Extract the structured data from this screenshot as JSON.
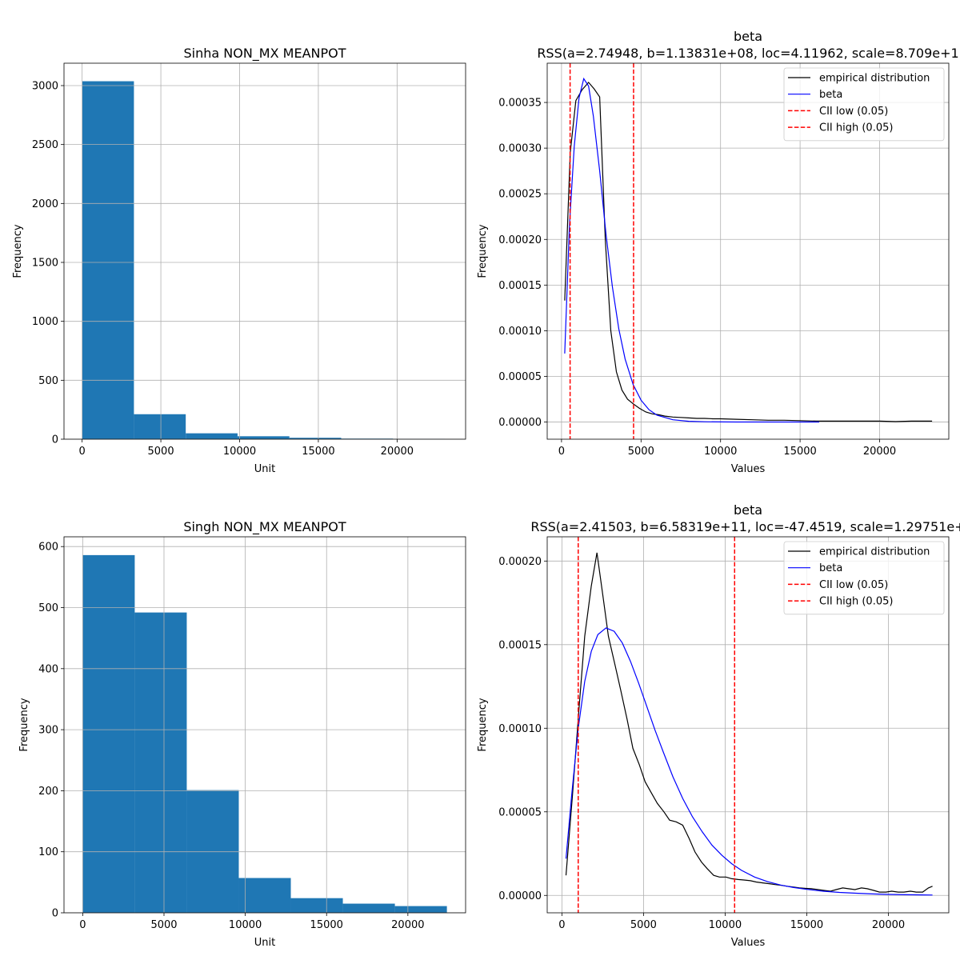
{
  "figure": {
    "background": "#ffffff"
  },
  "chart_data": [
    {
      "type": "bar",
      "title": "Sinha NON_MX MEANPOT",
      "xlabel": "Unit",
      "ylabel": "Frequency",
      "xlim": [
        -1150,
        24350
      ],
      "ylim": [
        0,
        3190
      ],
      "xticks": [
        0,
        5000,
        10000,
        15000,
        20000
      ],
      "xtick_labels": [
        "0",
        "5000",
        "10000",
        "15000",
        "20000"
      ],
      "yticks": [
        0,
        500,
        1000,
        1500,
        2000,
        2500,
        3000
      ],
      "ytick_labels": [
        "0",
        "500",
        "1000",
        "1500",
        "2000",
        "2500",
        "3000"
      ],
      "bin_edges": [
        0,
        3290,
        6580,
        9870,
        13160,
        16450,
        19740,
        23030
      ],
      "values": [
        3037,
        212,
        50,
        25,
        12,
        5,
        3
      ],
      "color": "#1f77b4",
      "grid": true
    },
    {
      "type": "line",
      "title": "beta\nRSS(a=2.74948, b=1.13831e+08, loc=4.11962, scale=8.709e+1",
      "xlabel": "Values",
      "ylabel": "Frequency",
      "xlim": [
        -900,
        24350
      ],
      "ylim": [
        -1.88e-05,
        0.000393
      ],
      "xticks": [
        0,
        5000,
        10000,
        15000,
        20000
      ],
      "xtick_labels": [
        "0",
        "5000",
        "10000",
        "15000",
        "20000"
      ],
      "yticks": [
        0,
        5e-05,
        0.0001,
        0.00015,
        0.0002,
        0.00025,
        0.0003,
        0.00035
      ],
      "ytick_labels": [
        "0.00000",
        "0.00005",
        "0.00010",
        "0.00015",
        "0.00020",
        "0.00025",
        "0.00030",
        "0.00035"
      ],
      "grid": true,
      "legend_position": "top-right",
      "series": [
        {
          "name": "empirical distribution",
          "color": "#000000",
          "style": "solid",
          "x": [
            200,
            550,
            900,
            1300,
            1700,
            2050,
            2400,
            2750,
            3100,
            3450,
            3800,
            4150,
            4500,
            4900,
            5300,
            5700,
            6100,
            6500,
            7000,
            7500,
            8000,
            8500,
            9000,
            9500,
            10000,
            11000,
            12000,
            13000,
            14000,
            15000,
            16000,
            17000,
            18000,
            19000,
            20000,
            21000,
            22000,
            23300
          ],
          "y": [
            0.000133,
            0.000295,
            0.000352,
            0.000364,
            0.000372,
            0.000365,
            0.000356,
            0.0002,
            0.0001,
            5.5e-05,
            3.5e-05,
            2.5e-05,
            2e-05,
            1.5e-05,
            1.1e-05,
            9e-06,
            8e-06,
            6.5e-06,
            5.5e-06,
            5e-06,
            4.5e-06,
            4e-06,
            4e-06,
            3.5e-06,
            3.5e-06,
            3e-06,
            2.5e-06,
            2e-06,
            2e-06,
            1.5e-06,
            1e-06,
            1e-06,
            1e-06,
            1e-06,
            1e-06,
            5e-07,
            1e-06,
            1e-06
          ]
        },
        {
          "name": "beta",
          "color": "#0000ff",
          "style": "solid",
          "x": [
            200,
            500,
            800,
            1100,
            1400,
            1700,
            2000,
            2400,
            2800,
            3200,
            3600,
            4000,
            4500,
            5000,
            5500,
            6000,
            7000,
            8000,
            9000,
            10000,
            11000,
            12000,
            13000,
            14000,
            15000,
            16200
          ],
          "y": [
            7.5e-05,
            0.000215,
            0.000302,
            0.000355,
            0.000376,
            0.000368,
            0.000335,
            0.000275,
            0.000205,
            0.000148,
            0.000102,
            6.9e-05,
            4.1e-05,
            2.4e-05,
            1.35e-05,
            7.5e-06,
            2.5e-06,
            8e-07,
            3e-07,
            1e-07,
            5e-08,
            0.0,
            0.0,
            0.0,
            0.0,
            0.0
          ]
        }
      ],
      "vlines": [
        {
          "name": "CII low (0.05)",
          "x": 540,
          "color": "#ff0000",
          "style": "dashed"
        },
        {
          "name": "CII high (0.05)",
          "x": 4530,
          "color": "#ff0000",
          "style": "dashed"
        }
      ]
    },
    {
      "type": "bar",
      "title": "Singh NON_MX MEANPOT",
      "xlabel": "Unit",
      "ylabel": "Frequency",
      "xlim": [
        -1150,
        23550
      ],
      "ylim": [
        0,
        616
      ],
      "xticks": [
        0,
        5000,
        10000,
        15000,
        20000
      ],
      "xtick_labels": [
        "0",
        "5000",
        "10000",
        "15000",
        "20000"
      ],
      "yticks": [
        0,
        100,
        200,
        300,
        400,
        500,
        600
      ],
      "ytick_labels": [
        "0",
        "100",
        "200",
        "300",
        "400",
        "500",
        "600"
      ],
      "bin_edges": [
        0,
        3200,
        6400,
        9600,
        12800,
        16000,
        19200,
        22400
      ],
      "values": [
        586,
        492,
        201,
        57,
        24,
        15,
        11
      ],
      "color": "#1f77b4",
      "grid": true
    },
    {
      "type": "line",
      "title": "beta\nRSS(a=2.41503, b=6.58319e+11, loc=-47.4519, scale=1.29751e+",
      "xlabel": "Values",
      "ylabel": "Frequency",
      "xlim": [
        -900,
        23700
      ],
      "ylim": [
        -1.04e-05,
        0.0002145
      ],
      "xticks": [
        0,
        5000,
        10000,
        15000,
        20000
      ],
      "xtick_labels": [
        "0",
        "5000",
        "10000",
        "15000",
        "20000"
      ],
      "yticks": [
        0,
        5e-05,
        0.0001,
        0.00015,
        0.0002
      ],
      "ytick_labels": [
        "0.00000",
        "0.00005",
        "0.00010",
        "0.00015",
        "0.00020"
      ],
      "grid": true,
      "legend_position": "top-right",
      "series": [
        {
          "name": "empirical distribution",
          "color": "#000000",
          "style": "solid",
          "x": [
            250,
            650,
            1050,
            1400,
            1800,
            2150,
            2500,
            2850,
            3250,
            3600,
            4000,
            4350,
            4750,
            5100,
            5500,
            5850,
            6250,
            6600,
            7000,
            7400,
            7800,
            8150,
            8550,
            8900,
            9300,
            9650,
            10050,
            10400,
            10800,
            11150,
            11550,
            11900,
            12300,
            12700,
            13050,
            13450,
            13800,
            14200,
            14550,
            14950,
            15300,
            15700,
            16050,
            16450,
            16800,
            17200,
            17550,
            17950,
            18350,
            18700,
            19100,
            19450,
            19850,
            20200,
            20600,
            20950,
            21350,
            21700,
            22100,
            22450,
            22700
          ],
          "y": [
            1.2e-05,
            6e-05,
            0.000112,
            0.000155,
            0.000185,
            0.000205,
            0.00018,
            0.000155,
            0.000138,
            0.000123,
            0.000105,
            8.8e-05,
            7.8e-05,
            6.8e-05,
            6.1e-05,
            5.5e-05,
            5e-05,
            4.5e-05,
            4.4e-05,
            4.2e-05,
            3.4e-05,
            2.6e-05,
            2e-05,
            1.6e-05,
            1.2e-05,
            1.1e-05,
            1.1e-05,
            1e-05,
            9.5e-06,
            9.2e-06,
            8.8e-06,
            8e-06,
            7.5e-06,
            7e-06,
            6.5e-06,
            6e-06,
            5.5e-06,
            5e-06,
            4.5e-06,
            4.2e-06,
            4e-06,
            3.5e-06,
            3e-06,
            2.5e-06,
            3.5e-06,
            4.5e-06,
            4e-06,
            3.5e-06,
            4.5e-06,
            4e-06,
            3e-06,
            2e-06,
            2e-06,
            2.5e-06,
            2e-06,
            2e-06,
            2.5e-06,
            2e-06,
            2e-06,
            4.5e-06,
            5.5e-06
          ]
        },
        {
          "name": "beta",
          "color": "#0000ff",
          "style": "solid",
          "x": [
            250,
            600,
            1000,
            1400,
            1800,
            2200,
            2700,
            3200,
            3700,
            4200,
            4700,
            5200,
            5700,
            6200,
            6800,
            7400,
            8000,
            8600,
            9200,
            9800,
            10400,
            11000,
            11800,
            12600,
            13400,
            14200,
            15000,
            16000,
            17000,
            18000,
            19000,
            20000,
            21000,
            22000,
            22700
          ],
          "y": [
            2.2e-05,
            6e-05,
            0.0001,
            0.000128,
            0.000146,
            0.000156,
            0.00016,
            0.000158,
            0.000151,
            0.00014,
            0.000127,
            0.000113,
            9.9e-05,
            8.6e-05,
            7.1e-05,
            5.8e-05,
            4.7e-05,
            3.8e-05,
            3e-05,
            2.4e-05,
            1.9e-05,
            1.5e-05,
            1.1e-05,
            8.2e-06,
            6.2e-06,
            4.7e-06,
            3.6e-06,
            2.5e-06,
            1.8e-06,
            1.3e-06,
            9e-07,
            6e-07,
            4e-07,
            3e-07,
            2e-07
          ]
        }
      ],
      "vlines": [
        {
          "name": "CII low (0.05)",
          "x": 1000,
          "color": "#ff0000",
          "style": "dashed"
        },
        {
          "name": "CII high (0.05)",
          "x": 10580,
          "color": "#ff0000",
          "style": "dashed"
        }
      ]
    }
  ]
}
